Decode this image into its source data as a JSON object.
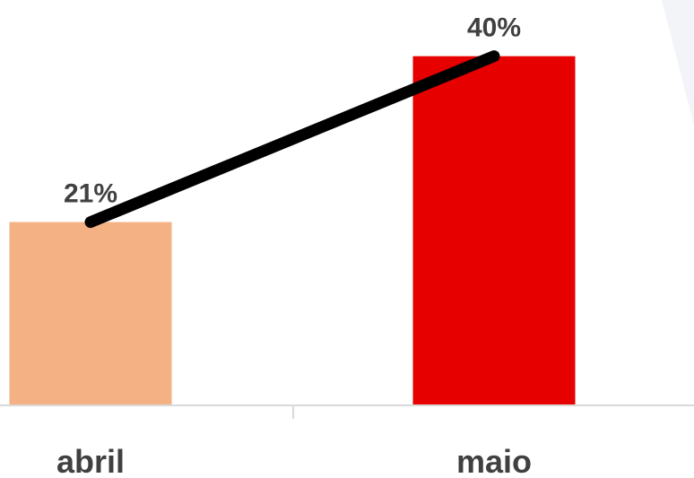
{
  "chart_data": {
    "type": "bar",
    "categories": [
      "abril",
      "maio"
    ],
    "values": [
      21,
      40
    ],
    "data_labels": [
      "21%",
      "40%"
    ],
    "unit": "%",
    "ylim": [
      0,
      45
    ],
    "grid": false,
    "legend": "none",
    "bar_colors": [
      "#F4B183",
      "#E60000"
    ],
    "trend_line": {
      "values": [
        21,
        40
      ],
      "color": "#000000"
    }
  }
}
